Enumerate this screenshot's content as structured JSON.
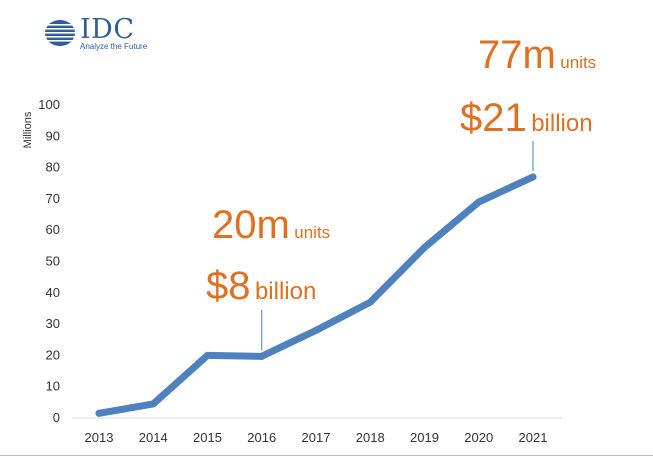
{
  "logo": {
    "name": "IDC",
    "tagline": "Analyze the Future"
  },
  "annotations": [
    {
      "units_value": "20m",
      "units_label": "units",
      "revenue_value": "$8",
      "revenue_label": "billion"
    },
    {
      "units_value": "77m",
      "units_label": "units",
      "revenue_value": "$21",
      "revenue_label": "billion"
    }
  ],
  "colors": {
    "series": "#4e81bd",
    "accent": "#e07020",
    "logo": "#2f5d9a"
  },
  "chart_data": {
    "type": "line",
    "x": [
      "2013",
      "2014",
      "2015",
      "2016",
      "2017",
      "2018",
      "2019",
      "2020",
      "2021"
    ],
    "series": [
      {
        "values": [
          1.5,
          4.5,
          20,
          19.7,
          28,
          37,
          54.5,
          69,
          77
        ]
      }
    ],
    "ylabel": "Millions",
    "ylim": [
      0,
      100
    ],
    "yticks": [
      0,
      10,
      20,
      30,
      40,
      50,
      60,
      70,
      80,
      90,
      100
    ],
    "grid": false,
    "legend": false
  }
}
